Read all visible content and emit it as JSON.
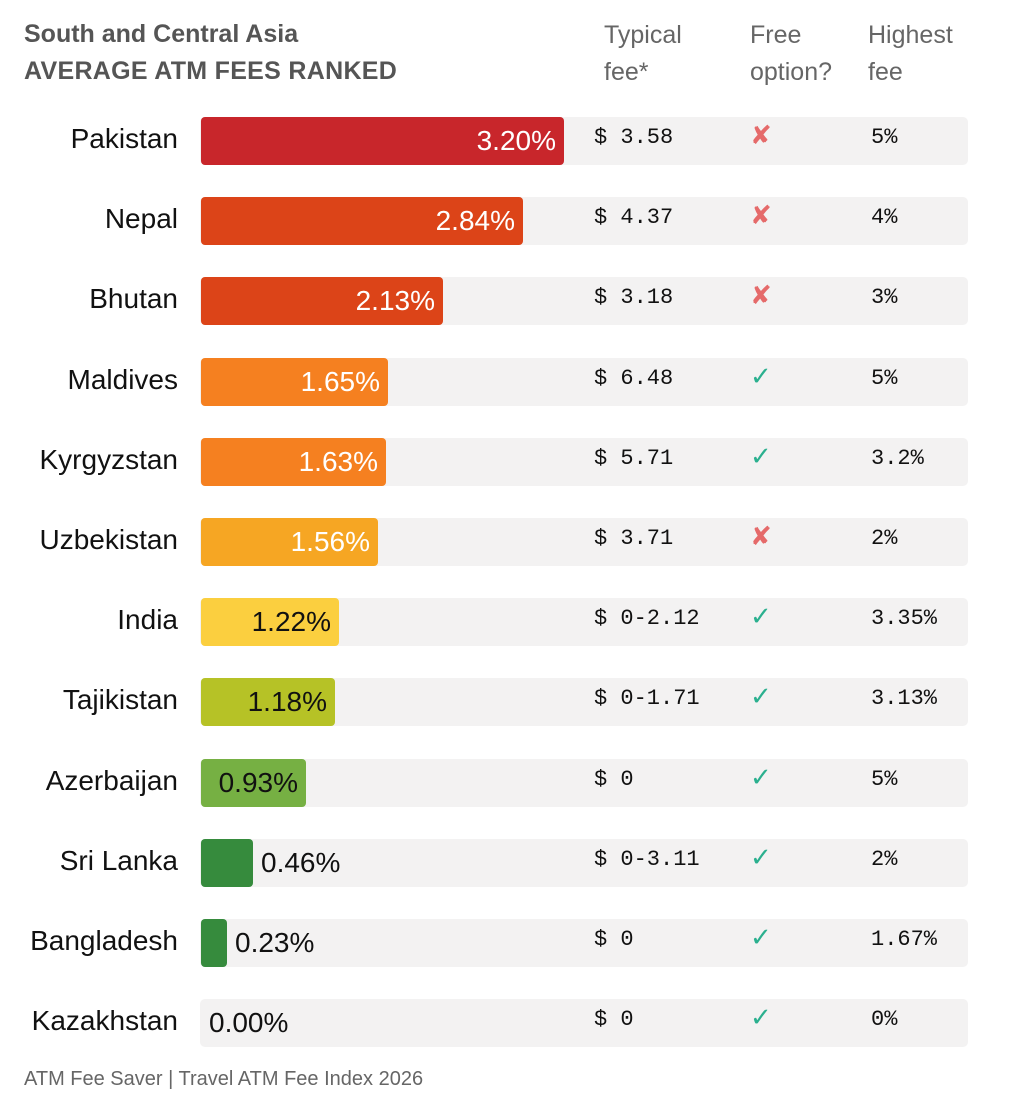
{
  "header": {
    "title": "South and Central Asia",
    "subtitle": "AVERAGE ATM FEES RANKED",
    "col_typical": [
      "Typical",
      "fee*"
    ],
    "col_free": [
      "Free",
      "option?"
    ],
    "col_highest": [
      "Highest",
      "fee"
    ]
  },
  "footer": "ATM Fee Saver | Travel ATM Fee Index 2026",
  "colors": {
    "track": "#f3f2f2",
    "cross": "#e56a6a",
    "check": "#2bb08f"
  },
  "chart_data": {
    "type": "bar",
    "orientation": "horizontal",
    "title": "South and Central Asia",
    "subtitle": "AVERAGE ATM FEES RANKED",
    "xlim": [
      0,
      3.2
    ],
    "categories": [
      "Pakistan",
      "Nepal",
      "Bhutan",
      "Maldives",
      "Kyrgyzstan",
      "Uzbekistan",
      "India",
      "Tajikistan",
      "Azerbaijan",
      "Sri Lanka",
      "Bangladesh",
      "Kazakhstan"
    ],
    "values": [
      3.2,
      2.84,
      2.13,
      1.65,
      1.63,
      1.56,
      1.22,
      1.18,
      0.93,
      0.46,
      0.23,
      0.0
    ],
    "value_labels": [
      "3.20%",
      "2.84%",
      "2.13%",
      "1.65%",
      "1.63%",
      "1.56%",
      "1.22%",
      "1.18%",
      "0.93%",
      "0.46%",
      "0.23%",
      "0.00%"
    ],
    "bar_colors": [
      "#c8262b",
      "#dc4418",
      "#dc4418",
      "#f58020",
      "#f58020",
      "#f6a623",
      "#fbcf3f",
      "#b6c226",
      "#76b043",
      "#368b3d",
      "#368b3d",
      "#368b3d"
    ],
    "typical_fee": [
      "$ 3.58",
      "$ 4.37",
      "$ 3.18",
      "$ 6.48",
      "$ 5.71",
      "$ 3.71",
      "$ 0-2.12",
      "$ 0-1.71",
      "$ 0",
      "$ 0-3.11",
      "$ 0",
      "$ 0"
    ],
    "free_option": [
      false,
      false,
      false,
      true,
      true,
      false,
      true,
      true,
      true,
      true,
      true,
      true
    ],
    "free_option_symbols": {
      "yes": "✓",
      "no": "✘"
    },
    "highest_fee": [
      "5%",
      "4%",
      "3%",
      "5%",
      "3.2%",
      "2%",
      "3.35%",
      "3.13%",
      "5%",
      "2%",
      "1.67%",
      "0%"
    ]
  }
}
